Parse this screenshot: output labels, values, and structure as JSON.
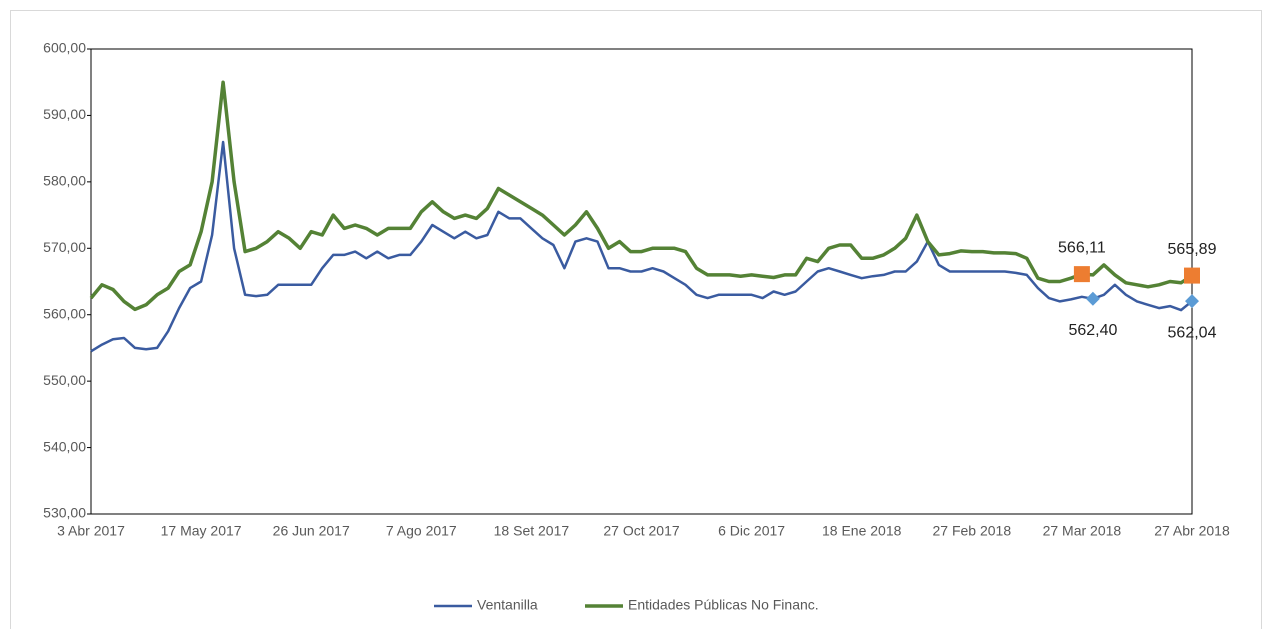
{
  "chart_data": {
    "type": "line",
    "categories": [
      "3 Abr 2017",
      null,
      null,
      null,
      null,
      null,
      null,
      null,
      null,
      null,
      "17 May 2017",
      null,
      null,
      null,
      null,
      null,
      null,
      null,
      null,
      null,
      "26 Jun 2017",
      null,
      null,
      null,
      null,
      null,
      null,
      null,
      null,
      null,
      "7 Ago 2017",
      null,
      null,
      null,
      null,
      null,
      null,
      null,
      null,
      null,
      "18 Set 2017",
      null,
      null,
      null,
      null,
      null,
      null,
      null,
      null,
      null,
      "27 Oct 2017",
      null,
      null,
      null,
      null,
      null,
      null,
      null,
      null,
      null,
      "6 Dic 2017",
      null,
      null,
      null,
      null,
      null,
      null,
      null,
      null,
      null,
      "18 Ene 2018",
      null,
      null,
      null,
      null,
      null,
      null,
      null,
      null,
      null,
      "27 Feb 2018",
      null,
      null,
      null,
      null,
      null,
      null,
      null,
      null,
      null,
      "27 Mar 2018",
      null,
      null,
      null,
      null,
      null,
      null,
      null,
      null,
      null,
      "27 Abr 2018"
    ],
    "series": [
      {
        "name": "Ventanilla",
        "color": "#3a5ba0",
        "marker_color": "#5b9bd5",
        "values": [
          554.5,
          555.5,
          556.3,
          556.5,
          555,
          554.8,
          555,
          557.5,
          561,
          564,
          565,
          572,
          586,
          570,
          563,
          562.8,
          563,
          564.5,
          564.5,
          564.5,
          564.5,
          567,
          569,
          569,
          569.5,
          568.5,
          569.5,
          568.5,
          569,
          569,
          571,
          573.5,
          572.5,
          571.5,
          572.5,
          571.5,
          572,
          575.5,
          574.5,
          574.5,
          573,
          571.5,
          570.5,
          567,
          571,
          571.5,
          571,
          567,
          567,
          566.5,
          566.5,
          567,
          566.5,
          565.5,
          564.5,
          563,
          562.5,
          563,
          563,
          563,
          563,
          562.5,
          563.5,
          563,
          563.5,
          565,
          566.5,
          567,
          566.5,
          566,
          565.5,
          565.8,
          566,
          566.5,
          566.5,
          568,
          571,
          567.5,
          566.5,
          566.5,
          566.5,
          566.5,
          566.5,
          566.5,
          566.3,
          566,
          564,
          562.5,
          562,
          562.3,
          562.7,
          562.4,
          563,
          564.5,
          563,
          562,
          561.5,
          561,
          561.3,
          560.7,
          562.04
        ],
        "value_labels": [
          null,
          null,
          null,
          null,
          null,
          null,
          null,
          null,
          null,
          null,
          null,
          null,
          null,
          null,
          null,
          null,
          null,
          null,
          null,
          null,
          null,
          null,
          null,
          null,
          null,
          null,
          null,
          null,
          null,
          null,
          null,
          null,
          null,
          null,
          null,
          null,
          null,
          null,
          null,
          null,
          null,
          null,
          null,
          null,
          null,
          null,
          null,
          null,
          null,
          null,
          null,
          null,
          null,
          null,
          null,
          null,
          null,
          null,
          null,
          null,
          null,
          null,
          null,
          null,
          null,
          null,
          null,
          null,
          null,
          null,
          null,
          null,
          null,
          null,
          null,
          null,
          null,
          null,
          null,
          null,
          null,
          null,
          null,
          null,
          null,
          null,
          null,
          null,
          null,
          null,
          null,
          "562,40",
          null,
          null,
          null,
          null,
          null,
          null,
          null,
          null,
          "562,04"
        ]
      },
      {
        "name": "Entidades Públicas No Financ.",
        "color": "#548235",
        "marker_color": "#ed7d31",
        "values": [
          562.5,
          564.5,
          563.8,
          562,
          560.8,
          561.5,
          563,
          564,
          566.5,
          567.5,
          572.5,
          580,
          595,
          580,
          569.5,
          570,
          571,
          572.5,
          571.5,
          570,
          572.5,
          572,
          575,
          573,
          573.5,
          573,
          572,
          573,
          573,
          573,
          575.5,
          577,
          575.5,
          574.5,
          575,
          574.5,
          576,
          579,
          578,
          577,
          576,
          575,
          573.5,
          572,
          573.5,
          575.5,
          573,
          570,
          571,
          569.5,
          569.5,
          570,
          570,
          570,
          569.5,
          567,
          566,
          566,
          566,
          565.8,
          566,
          565.8,
          565.6,
          566,
          566,
          568.5,
          568,
          570,
          570.5,
          570.5,
          568.5,
          568.5,
          569,
          570,
          571.5,
          575,
          571,
          569,
          569.2,
          569.6,
          569.5,
          569.5,
          569.3,
          569.3,
          569.2,
          568.5,
          565.5,
          565,
          565,
          565.5,
          566.11,
          566,
          567.5,
          566,
          564.8,
          564.5,
          564.2,
          564.5,
          565,
          564.8,
          565.89
        ],
        "value_labels": [
          null,
          null,
          null,
          null,
          null,
          null,
          null,
          null,
          null,
          null,
          null,
          null,
          null,
          null,
          null,
          null,
          null,
          null,
          null,
          null,
          null,
          null,
          null,
          null,
          null,
          null,
          null,
          null,
          null,
          null,
          null,
          null,
          null,
          null,
          null,
          null,
          null,
          null,
          null,
          null,
          null,
          null,
          null,
          null,
          null,
          null,
          null,
          null,
          null,
          null,
          null,
          null,
          null,
          null,
          null,
          null,
          null,
          null,
          null,
          null,
          null,
          null,
          null,
          null,
          null,
          null,
          null,
          null,
          null,
          null,
          null,
          null,
          null,
          null,
          null,
          null,
          null,
          null,
          null,
          null,
          null,
          null,
          null,
          null,
          null,
          null,
          null,
          null,
          null,
          null,
          "566,11",
          null,
          null,
          null,
          null,
          null,
          null,
          null,
          null,
          null,
          "565,89"
        ]
      }
    ],
    "ylim": [
      530,
      600
    ],
    "yticks": [
      {
        "value": 530,
        "label": "530,00"
      },
      {
        "value": 540,
        "label": "540,00"
      },
      {
        "value": 550,
        "label": "550,00"
      },
      {
        "value": 560,
        "label": "560,00"
      },
      {
        "value": 570,
        "label": "570,00"
      },
      {
        "value": 580,
        "label": "580,00"
      },
      {
        "value": 590,
        "label": "590,00"
      },
      {
        "value": 600,
        "label": "600,00"
      }
    ],
    "legend": "bottom"
  }
}
